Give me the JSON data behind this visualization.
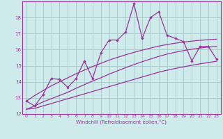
{
  "xlabel": "Windchill (Refroidissement éolien,°C)",
  "ylabel": "",
  "bg_color": "#ceeaea",
  "grid_color": "#aacccc",
  "line_color": "#993399",
  "xlim": [
    -0.5,
    23.5
  ],
  "ylim": [
    12,
    19
  ],
  "yticks": [
    12,
    13,
    14,
    15,
    16,
    17,
    18
  ],
  "xticks": [
    0,
    1,
    2,
    3,
    4,
    5,
    6,
    7,
    8,
    9,
    10,
    11,
    12,
    13,
    14,
    15,
    16,
    17,
    18,
    19,
    20,
    21,
    22,
    23
  ],
  "x": [
    0,
    1,
    2,
    3,
    4,
    5,
    6,
    7,
    8,
    9,
    10,
    11,
    12,
    13,
    14,
    15,
    16,
    17,
    18,
    19,
    20,
    21,
    22,
    23
  ],
  "y_main": [
    12.8,
    12.5,
    13.2,
    14.2,
    14.15,
    13.65,
    14.2,
    15.3,
    14.2,
    15.8,
    16.6,
    16.6,
    17.1,
    18.85,
    16.7,
    18.0,
    18.35,
    16.9,
    16.7,
    16.5,
    15.3,
    16.2,
    16.2,
    15.4
  ],
  "y_trend1": [
    12.3,
    12.35,
    12.5,
    12.65,
    12.8,
    12.95,
    13.1,
    13.25,
    13.4,
    13.55,
    13.7,
    13.85,
    14.0,
    14.15,
    14.3,
    14.45,
    14.6,
    14.72,
    14.83,
    14.93,
    15.03,
    15.12,
    15.2,
    15.28
  ],
  "y_trend2": [
    12.3,
    12.5,
    12.75,
    12.95,
    13.15,
    13.35,
    13.6,
    13.82,
    14.05,
    14.25,
    14.48,
    14.68,
    14.88,
    15.07,
    15.25,
    15.42,
    15.58,
    15.72,
    15.84,
    15.94,
    16.03,
    16.1,
    16.16,
    16.2
  ],
  "y_trend3": [
    12.8,
    13.15,
    13.45,
    13.75,
    14.0,
    14.25,
    14.5,
    14.73,
    14.95,
    15.15,
    15.35,
    15.52,
    15.68,
    15.83,
    15.97,
    16.1,
    16.22,
    16.32,
    16.4,
    16.47,
    16.53,
    16.58,
    16.62,
    16.65
  ]
}
